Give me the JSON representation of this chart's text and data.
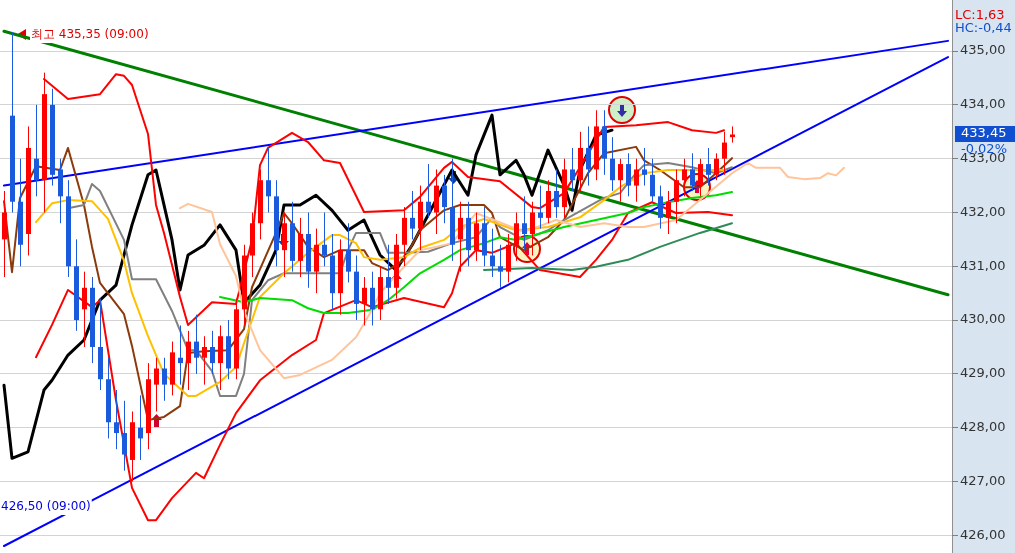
{
  "chart_data": {
    "type": "candlestick",
    "categories": [
      null,
      null,
      null,
      null,
      null,
      null,
      null,
      null,
      null,
      null,
      null,
      null,
      null,
      null,
      null,
      null,
      null,
      null,
      null,
      null,
      null,
      null,
      null,
      null,
      null,
      null,
      null,
      null,
      null,
      null,
      null,
      null,
      null,
      null,
      null,
      null,
      null,
      null,
      null,
      null,
      null,
      null,
      null,
      null,
      null,
      null,
      null,
      null,
      null,
      null,
      null,
      null,
      null,
      null,
      null,
      null,
      null,
      null,
      null,
      null,
      null,
      null,
      null,
      null,
      null,
      null,
      null,
      null,
      null,
      null,
      null,
      null,
      null,
      null,
      null,
      null,
      null,
      null,
      null,
      null,
      null,
      null,
      null,
      null,
      null,
      null,
      null,
      null,
      null,
      null,
      null,
      null,
      null,
      null,
      null,
      null,
      null,
      null,
      null,
      null,
      null,
      null,
      null,
      null,
      null,
      null,
      null,
      null,
      null,
      null,
      null,
      null,
      null,
      null,
      null,
      null,
      null,
      null,
      null
    ],
    "ohlc": [
      [
        431.5,
        432.4,
        430.8,
        432.0
      ],
      [
        433.8,
        435.35,
        432.0,
        432.2
      ],
      [
        432.2,
        433.0,
        431.0,
        431.4
      ],
      [
        431.6,
        433.6,
        431.2,
        433.2
      ],
      [
        433.0,
        434.0,
        432.3,
        432.6
      ],
      [
        432.6,
        434.6,
        432.0,
        434.2
      ],
      [
        434.0,
        434.3,
        432.5,
        432.7
      ],
      [
        432.8,
        433.0,
        431.8,
        432.3
      ],
      [
        432.3,
        432.6,
        430.8,
        431.0
      ],
      [
        431.0,
        431.5,
        429.8,
        430.0
      ],
      [
        430.2,
        430.9,
        429.5,
        430.6
      ],
      [
        430.6,
        430.8,
        429.2,
        429.5
      ],
      [
        429.5,
        430.4,
        428.7,
        428.9
      ],
      [
        428.9,
        429.3,
        427.8,
        428.1
      ],
      [
        428.1,
        428.7,
        427.6,
        427.9
      ],
      [
        427.9,
        428.5,
        427.2,
        427.5
      ],
      [
        427.4,
        428.3,
        427.0,
        428.1
      ],
      [
        428.0,
        428.6,
        427.4,
        427.8
      ],
      [
        427.9,
        429.2,
        427.6,
        428.9
      ],
      [
        428.8,
        429.3,
        428.3,
        429.1
      ],
      [
        429.1,
        429.3,
        428.5,
        428.8
      ],
      [
        428.8,
        429.6,
        428.6,
        429.4
      ],
      [
        429.3,
        429.9,
        428.8,
        429.2
      ],
      [
        429.2,
        429.8,
        428.7,
        429.6
      ],
      [
        429.6,
        430.1,
        429.0,
        429.3
      ],
      [
        429.3,
        429.7,
        428.8,
        429.5
      ],
      [
        429.5,
        429.8,
        429.0,
        429.2
      ],
      [
        429.2,
        429.9,
        428.7,
        429.7
      ],
      [
        429.7,
        430.0,
        428.9,
        429.1
      ],
      [
        429.1,
        430.4,
        428.9,
        430.2
      ],
      [
        430.2,
        431.4,
        429.9,
        431.2
      ],
      [
        431.2,
        432.0,
        430.8,
        431.8
      ],
      [
        431.8,
        432.8,
        431.5,
        432.6
      ],
      [
        432.6,
        433.2,
        432.0,
        432.3
      ],
      [
        432.3,
        432.6,
        431.0,
        431.3
      ],
      [
        431.3,
        432.0,
        430.8,
        431.8
      ],
      [
        431.8,
        432.2,
        430.9,
        431.1
      ],
      [
        431.1,
        431.9,
        430.8,
        431.6
      ],
      [
        431.6,
        432.0,
        430.6,
        430.9
      ],
      [
        430.9,
        431.7,
        430.5,
        431.4
      ],
      [
        431.4,
        432.0,
        431.0,
        431.2
      ],
      [
        431.2,
        431.6,
        430.2,
        430.5
      ],
      [
        430.5,
        431.5,
        430.1,
        431.3
      ],
      [
        431.3,
        431.8,
        430.7,
        430.9
      ],
      [
        430.9,
        431.2,
        430.0,
        430.3
      ],
      [
        430.3,
        430.8,
        429.9,
        430.6
      ],
      [
        430.6,
        430.9,
        429.9,
        430.2
      ],
      [
        430.2,
        431.0,
        430.0,
        430.8
      ],
      [
        430.8,
        431.4,
        430.3,
        430.6
      ],
      [
        430.6,
        431.6,
        430.4,
        431.4
      ],
      [
        431.4,
        432.1,
        431.0,
        431.9
      ],
      [
        431.9,
        432.4,
        431.5,
        431.7
      ],
      [
        431.7,
        432.5,
        431.3,
        432.2
      ],
      [
        432.2,
        432.9,
        431.9,
        432.0
      ],
      [
        432.0,
        432.8,
        431.6,
        432.5
      ],
      [
        432.5,
        432.7,
        431.8,
        432.1
      ],
      [
        432.1,
        433.0,
        431.1,
        431.4
      ],
      [
        431.5,
        432.2,
        430.9,
        431.9
      ],
      [
        431.9,
        432.2,
        431.0,
        431.3
      ],
      [
        431.3,
        432.0,
        431.1,
        431.8
      ],
      [
        431.8,
        432.1,
        431.0,
        431.2
      ],
      [
        431.2,
        431.7,
        430.8,
        431.0
      ],
      [
        431.0,
        431.4,
        430.6,
        430.9
      ],
      [
        430.9,
        431.6,
        430.7,
        431.4
      ],
      [
        431.4,
        432.0,
        431.1,
        431.8
      ],
      [
        431.8,
        432.3,
        431.3,
        431.6
      ],
      [
        431.6,
        432.2,
        431.2,
        432.0
      ],
      [
        432.0,
        432.5,
        431.7,
        431.9
      ],
      [
        431.9,
        432.6,
        431.8,
        432.4
      ],
      [
        432.4,
        432.8,
        431.9,
        432.1
      ],
      [
        432.1,
        433.0,
        431.9,
        432.8
      ],
      [
        432.8,
        433.2,
        432.4,
        432.6
      ],
      [
        432.6,
        433.5,
        432.4,
        433.2
      ],
      [
        433.2,
        433.6,
        432.5,
        432.8
      ],
      [
        432.8,
        433.9,
        432.6,
        433.6
      ],
      [
        433.6,
        433.9,
        432.7,
        433.0
      ],
      [
        433.0,
        433.4,
        432.4,
        432.6
      ],
      [
        432.6,
        433.0,
        432.2,
        432.9
      ],
      [
        432.9,
        433.1,
        432.3,
        432.5
      ],
      [
        432.5,
        433.0,
        432.2,
        432.8
      ],
      [
        432.8,
        433.2,
        432.5,
        432.7
      ],
      [
        432.7,
        433.0,
        432.2,
        432.3
      ],
      [
        432.3,
        432.5,
        431.7,
        431.9
      ],
      [
        431.9,
        432.4,
        431.6,
        432.2
      ],
      [
        432.2,
        432.8,
        431.8,
        432.6
      ],
      [
        432.6,
        433.0,
        432.3,
        432.8
      ],
      [
        432.8,
        433.1,
        432.4,
        432.5
      ],
      [
        432.5,
        433.0,
        432.3,
        432.9
      ],
      [
        432.9,
        433.2,
        432.5,
        432.7
      ],
      [
        432.7,
        433.1,
        432.6,
        433.0
      ],
      [
        433.0,
        433.5,
        432.7,
        433.3
      ],
      [
        433.4,
        433.6,
        433.3,
        433.45
      ],
      null,
      null,
      null,
      null,
      null,
      null,
      null,
      null,
      null,
      null,
      null,
      null,
      null,
      null,
      null,
      null,
      null,
      null,
      null,
      null,
      null,
      null,
      null,
      null,
      null,
      null,
      null
    ],
    "series": [
      {
        "type": "line",
        "color": "#ffc49a",
        "values": [
          null,
          null,
          null,
          null,
          null,
          null,
          null,
          null,
          null,
          null,
          null,
          null,
          null,
          null,
          null,
          null,
          null,
          null,
          null,
          null,
          null,
          null,
          432.08,
          432.16,
          null,
          null,
          432.01,
          431.41,
          null,
          430.82,
          430.17,
          null,
          429.44,
          null,
          null,
          428.92,
          null,
          428.98,
          null,
          null,
          null,
          429.26,
          null,
          null,
          429.68,
          null,
          430.19,
          430.5,
          null,
          null,
          430.99,
          null,
          431.3,
          null,
          431.36,
          null,
          431.43,
          431.62,
          null,
          431.99,
          null,
          null,
          null,
          null,
          null,
          431.64,
          null,
          null,
          null,
          431.86,
          null,
          null,
          431.73,
          null,
          null,
          431.8,
          null,
          null,
          431.73,
          null,
          431.73,
          null,
          null,
          null,
          431.86,
          null,
          null,
          null,
          null,
          null,
          null,
          432.73,
          null,
          432.92,
          432.83,
          null,
          null,
          432.83,
          432.66,
          null,
          432.62,
          null,
          432.64,
          432.73,
          432.69,
          432.83,
          null,
          null,
          null,
          null,
          null,
          null,
          null,
          null,
          null,
          null,
          null,
          null,
          null
        ]
      },
      {
        "type": "line",
        "color": "#2e8b57",
        "values": [
          null,
          null,
          null,
          null,
          null,
          null,
          null,
          null,
          null,
          null,
          null,
          null,
          null,
          null,
          null,
          null,
          null,
          null,
          null,
          null,
          null,
          null,
          null,
          null,
          null,
          null,
          null,
          null,
          null,
          null,
          null,
          null,
          null,
          null,
          null,
          null,
          null,
          null,
          null,
          null,
          null,
          null,
          null,
          null,
          null,
          null,
          null,
          null,
          null,
          null,
          null,
          null,
          null,
          null,
          null,
          null,
          null,
          null,
          null,
          null,
          430.93,
          null,
          null,
          null,
          null,
          null,
          430.97,
          null,
          null,
          null,
          null,
          430.93,
          null,
          null,
          430.99,
          null,
          null,
          null,
          431.12,
          null,
          null,
          null,
          431.36,
          null,
          null,
          null,
          null,
          431.62,
          null,
          null,
          null,
          431.8,
          null,
          null,
          null,
          null,
          null,
          null,
          null,
          null,
          null,
          null,
          null,
          null,
          null,
          null,
          null,
          null,
          null,
          null,
          null,
          null,
          null,
          null,
          null,
          null,
          null,
          null,
          null
        ]
      },
      {
        "type": "line",
        "color": "#00dd00",
        "values": [
          null,
          null,
          null,
          null,
          null,
          null,
          null,
          null,
          null,
          null,
          null,
          null,
          null,
          null,
          null,
          null,
          null,
          null,
          null,
          null,
          null,
          null,
          null,
          null,
          null,
          null,
          null,
          430.43,
          null,
          null,
          430.33,
          null,
          430.41,
          null,
          null,
          null,
          430.37,
          null,
          430.22,
          null,
          430.13,
          null,
          null,
          430.13,
          null,
          null,
          430.19,
          null,
          430.37,
          null,
          430.61,
          null,
          430.87,
          null,
          null,
          431.12,
          null,
          431.3,
          null,
          null,
          431.43,
          null,
          431.54,
          null,
          431.49,
          null,
          null,
          null,
          null,
          null,
          431.73,
          null,
          null,
          null,
          431.86,
          null,
          null,
          null,
          431.99,
          null,
          432.1,
          null,
          null,
          432.19,
          null,
          null,
          432.27,
          null,
          null,
          432.32,
          null,
          432.38,
          null,
          null,
          null,
          null,
          null,
          null,
          null,
          null,
          null,
          null,
          null,
          null,
          null,
          null,
          null,
          null,
          null,
          null,
          null,
          null,
          null,
          null,
          null,
          null,
          null,
          null,
          null
        ]
      },
      {
        "type": "line",
        "color": "#ffc000",
        "values": [
          null,
          null,
          null,
          null,
          431.82,
          null,
          432.17,
          null,
          432.23,
          null,
          null,
          432.21,
          null,
          431.88,
          null,
          431.1,
          430.5,
          null,
          429.7,
          null,
          429.0,
          null,
          null,
          428.59,
          428.59,
          null,
          null,
          428.85,
          null,
          429.13,
          429.57,
          null,
          430.43,
          null,
          null,
          430.87,
          null,
          null,
          431.25,
          null,
          null,
          431.58,
          431.58,
          null,
          431.43,
          431.17,
          null,
          431.12,
          null,
          null,
          431.17,
          null,
          431.34,
          null,
          null,
          431.49,
          null,
          431.73,
          null,
          null,
          431.88,
          null,
          null,
          null,
          431.67,
          null,
          null,
          null,
          431.73,
          null,
          null,
          null,
          431.91,
          null,
          null,
          432.23,
          null,
          432.47,
          null,
          null,
          432.73,
          null,
          null,
          432.79,
          null,
          null,
          432.79,
          null,
          null,
          null,
          432.79,
          null,
          null,
          null,
          null,
          null,
          null,
          null,
          null,
          null,
          null,
          null,
          null,
          null,
          null,
          null,
          null,
          null,
          null,
          null,
          null,
          null,
          null,
          null,
          null,
          null,
          null,
          null,
          null
        ]
      },
      {
        "type": "line",
        "color": "#808080",
        "values": [
          null,
          null,
          null,
          null,
          null,
          null,
          null,
          null,
          432.08,
          null,
          432.14,
          432.53,
          432.4,
          null,
          null,
          431.49,
          430.76,
          null,
          null,
          430.76,
          null,
          430.17,
          null,
          429.44,
          429.44,
          null,
          429.05,
          428.59,
          null,
          428.59,
          429.0,
          430.37,
          null,
          430.74,
          null,
          430.87,
          null,
          null,
          null,
          null,
          null,
          null,
          430.87,
          431.3,
          431.62,
          null,
          null,
          431.62,
          431.25,
          null,
          431.25,
          null,
          null,
          431.27,
          null,
          null,
          431.43,
          null,
          null,
          431.54,
          null,
          431.9,
          431.73,
          null,
          null,
          431.49,
          null,
          null,
          431.67,
          null,
          431.86,
          null,
          null,
          null,
          null,
          432.27,
          null,
          432.36,
          null,
          432.73,
          432.88,
          null,
          null,
          432.92,
          null,
          null,
          432.84,
          null,
          null,
          432.73,
          null,
          432.84,
          null,
          null,
          null,
          null,
          null,
          null,
          null,
          null,
          null,
          null,
          null,
          null,
          null,
          null,
          null,
          null,
          null,
          null,
          null,
          null,
          null,
          null,
          null,
          null,
          null,
          null,
          null
        ]
      },
      {
        "type": "line",
        "color": "#8b3a0a",
        "values": [
          432.21,
          430.89,
          432.27,
          null,
          432.86,
          null,
          null,
          432.79,
          433.2,
          null,
          432.14,
          431.36,
          430.69,
          null,
          null,
          430.11,
          429.52,
          null,
          428.14,
          null,
          428.2,
          null,
          428.4,
          429.39,
          null,
          429.42,
          null,
          null,
          429.44,
          null,
          429.83,
          430.61,
          null,
          null,
          431.62,
          431.99,
          431.8,
          null,
          431.36,
          null,
          431.17,
          null,
          431.3,
          null,
          null,
          431.3,
          431.06,
          null,
          430.93,
          null,
          431.12,
          null,
          431.67,
          null,
          null,
          432.04,
          null,
          432.14,
          null,
          null,
          432.14,
          431.99,
          431.54,
          null,
          null,
          431.3,
          null,
          null,
          431.54,
          null,
          431.86,
          null,
          null,
          432.73,
          null,
          433.1,
          null,
          null,
          null,
          433.22,
          432.97,
          null,
          432.79,
          null,
          null,
          432.47,
          null,
          432.47,
          null,
          432.73,
          null,
          433.01,
          null,
          null,
          null,
          null,
          null,
          null,
          null,
          null,
          null,
          null,
          null,
          null,
          null,
          null,
          null,
          null,
          null,
          null,
          null,
          null,
          null,
          null,
          null,
          null,
          null,
          null,
          null
        ]
      },
      {
        "type": "line",
        "color": "#ff0000",
        "values": [
          null,
          null,
          null,
          null,
          null,
          434.48,
          null,
          null,
          434.11,
          null,
          null,
          null,
          434.2,
          null,
          434.57,
          434.54,
          434.37,
          null,
          433.46,
          432.14,
          431.62,
          null,
          430.43,
          429.91,
          null,
          null,
          430.33,
          null,
          null,
          430.3,
          null,
          431.49,
          432.88,
          433.2,
          null,
          null,
          433.48,
          null,
          433.31,
          null,
          432.97,
          null,
          432.92,
          null,
          null,
          432.01,
          null,
          null,
          null,
          null,
          432.04,
          null,
          432.29,
          null,
          null,
          432.83,
          432.94,
          null,
          432.66,
          null,
          null,
          null,
          432.58,
          null,
          null,
          null,
          432.1,
          432.08,
          null,
          null,
          432.36,
          null,
          432.84,
          null,
          null,
          433.59,
          null,
          null,
          null,
          433.62,
          null,
          null,
          null,
          433.68,
          null,
          null,
          433.53,
          null,
          null,
          433.48,
          433.53,
          null,
          null,
          null,
          null,
          null,
          null,
          null,
          null,
          null,
          null,
          null,
          null,
          null,
          null,
          null,
          null,
          null,
          null,
          null,
          null,
          null,
          null,
          null,
          null,
          null,
          null,
          null,
          null
        ]
      },
      {
        "type": "line",
        "color": "#ff0000",
        "values": [
          null,
          null,
          null,
          null,
          429.31,
          null,
          429.91,
          null,
          430.56,
          null,
          null,
          430.24,
          430.37,
          null,
          428.51,
          null,
          426.88,
          null,
          426.28,
          426.28,
          null,
          426.69,
          null,
          null,
          427.16,
          427.06,
          null,
          427.68,
          null,
          428.27,
          null,
          null,
          428.88,
          null,
          null,
          null,
          429.35,
          null,
          null,
          429.63,
          430.13,
          null,
          null,
          null,
          430.37,
          null,
          430.24,
          null,
          null,
          null,
          430.41,
          null,
          null,
          null,
          null,
          430.24,
          430.5,
          430.99,
          null,
          431.3,
          null,
          431.25,
          null,
          null,
          431.43,
          null,
          null,
          430.93,
          null,
          null,
          null,
          null,
          430.8,
          null,
          431.12,
          null,
          431.49,
          null,
          431.99,
          null,
          null,
          432.19,
          null,
          null,
          431.99,
          null,
          null,
          null,
          432.01,
          null,
          null,
          431.95,
          null,
          null,
          null,
          null,
          null,
          null,
          null,
          null,
          null,
          null,
          null,
          null,
          null,
          null,
          null,
          null,
          null,
          null,
          null,
          null,
          null,
          null,
          null,
          null,
          null,
          null,
          null
        ]
      },
      {
        "type": "line",
        "color": "#000000",
        "values": [
          428.79,
          427.43,
          null,
          427.55,
          null,
          428.7,
          428.88,
          null,
          429.35,
          null,
          429.63,
          null,
          430.37,
          null,
          430.65,
          null,
          431.77,
          null,
          432.7,
          432.79,
          null,
          431.49,
          430.56,
          431.21,
          null,
          431.39,
          null,
          431.77,
          null,
          431.3,
          430.32,
          null,
          430.65,
          null,
          431.3,
          432.14,
          null,
          432.14,
          null,
          432.32,
          null,
          432.04,
          null,
          431.67,
          null,
          431.86,
          null,
          431.21,
          null,
          430.93,
          null,
          431.39,
          null,
          431.95,
          null,
          null,
          432.79,
          null,
          432.32,
          433.07,
          null,
          433.81,
          432.7,
          null,
          432.97,
          432.7,
          432.32,
          null,
          433.16,
          null,
          432.51,
          432.04,
          432.79,
          null,
          433.44,
          null,
          433.53,
          null,
          null,
          null,
          null,
          null,
          null,
          null,
          null,
          null,
          null,
          null,
          null,
          null,
          null,
          null,
          null,
          null,
          null,
          null,
          null,
          null,
          null,
          null,
          null,
          null,
          null,
          null,
          null,
          null,
          null,
          null,
          null,
          null,
          null,
          null,
          null,
          null,
          null,
          null,
          null,
          null,
          null
        ]
      },
      {
        "type": "line",
        "color": "#0000ff",
        "values": [
          432.5,
          null,
          null,
          null,
          null,
          null,
          null,
          null,
          null,
          null,
          null,
          null,
          null,
          null,
          null,
          null,
          null,
          null,
          null,
          null,
          null,
          null,
          null,
          null,
          null,
          null,
          null,
          null,
          null,
          null,
          null,
          null,
          null,
          null,
          null,
          null,
          null,
          null,
          null,
          null,
          null,
          null,
          null,
          null,
          null,
          null,
          null,
          null,
          null,
          null,
          null,
          null,
          null,
          null,
          null,
          null,
          null,
          null,
          null,
          null,
          null,
          null,
          null,
          null,
          null,
          null,
          null,
          null,
          null,
          null,
          null,
          null,
          null,
          null,
          null,
          null,
          null,
          null,
          null,
          null,
          null,
          null,
          null,
          null,
          null,
          null,
          null,
          null,
          null,
          null,
          null,
          null,
          null,
          null,
          null,
          null,
          null,
          null,
          null,
          null,
          null,
          null,
          null,
          null,
          null,
          null,
          null,
          null,
          null,
          null,
          null,
          null,
          null,
          null,
          null,
          null,
          null,
          null,
          435.19
        ]
      },
      {
        "type": "line",
        "color": "#0000ff",
        "values": [
          425.8,
          null,
          null,
          null,
          null,
          null,
          null,
          null,
          null,
          null,
          null,
          null,
          null,
          null,
          null,
          null,
          null,
          null,
          null,
          null,
          null,
          null,
          null,
          null,
          null,
          null,
          null,
          null,
          null,
          null,
          null,
          null,
          null,
          null,
          null,
          null,
          null,
          null,
          null,
          null,
          null,
          null,
          null,
          null,
          null,
          null,
          null,
          null,
          null,
          null,
          null,
          null,
          null,
          null,
          null,
          null,
          null,
          null,
          null,
          null,
          null,
          null,
          null,
          null,
          null,
          null,
          null,
          null,
          null,
          null,
          null,
          null,
          null,
          null,
          null,
          null,
          null,
          null,
          null,
          null,
          null,
          null,
          null,
          null,
          null,
          null,
          null,
          null,
          null,
          null,
          null,
          null,
          null,
          null,
          null,
          null,
          null,
          null,
          null,
          null,
          null,
          null,
          null,
          null,
          null,
          null,
          null,
          null,
          null,
          null,
          null,
          null,
          null,
          null,
          null,
          null,
          null,
          null,
          434.89
        ]
      },
      {
        "type": "line",
        "color": "#008000",
        "values": [
          435.37,
          null,
          null,
          null,
          null,
          null,
          null,
          null,
          null,
          null,
          null,
          null,
          null,
          null,
          null,
          null,
          null,
          null,
          null,
          null,
          null,
          null,
          null,
          null,
          null,
          null,
          null,
          null,
          null,
          null,
          null,
          null,
          null,
          null,
          null,
          null,
          null,
          null,
          null,
          null,
          null,
          null,
          null,
          null,
          null,
          null,
          null,
          null,
          null,
          null,
          null,
          null,
          null,
          null,
          null,
          null,
          null,
          null,
          null,
          null,
          null,
          null,
          null,
          null,
          null,
          null,
          null,
          null,
          null,
          null,
          null,
          null,
          null,
          null,
          null,
          null,
          null,
          null,
          null,
          null,
          null,
          null,
          null,
          null,
          null,
          null,
          null,
          null,
          null,
          null,
          null,
          null,
          null,
          null,
          null,
          null,
          null,
          null,
          null,
          null,
          null,
          null,
          null,
          null,
          null,
          null,
          null,
          null,
          null,
          null,
          null,
          null,
          null,
          null,
          null,
          null,
          null,
          null,
          430.47
        ]
      }
    ],
    "ylim": [
      425.67,
      435.95
    ],
    "yticks": [
      {
        "value": 426,
        "label": "426,00"
      },
      {
        "value": 427,
        "label": "427,00"
      },
      {
        "value": 428,
        "label": "428,00"
      },
      {
        "value": 429,
        "label": "429,00"
      },
      {
        "value": 430,
        "label": "430,00"
      },
      {
        "value": 431,
        "label": "431,00"
      },
      {
        "value": 432,
        "label": "432,00"
      },
      {
        "value": 433,
        "label": "433,00"
      },
      {
        "value": 434,
        "label": "434,00"
      },
      {
        "value": 435,
        "label": "435,00"
      }
    ],
    "tick_labels": "y",
    "grid": "y",
    "annotations": [
      "최고 435,35 (09:00)",
      "426,50 (09:00)",
      "LC:1,63",
      "HC:-0,44",
      "433,45",
      "-0,02%"
    ]
  }
}
